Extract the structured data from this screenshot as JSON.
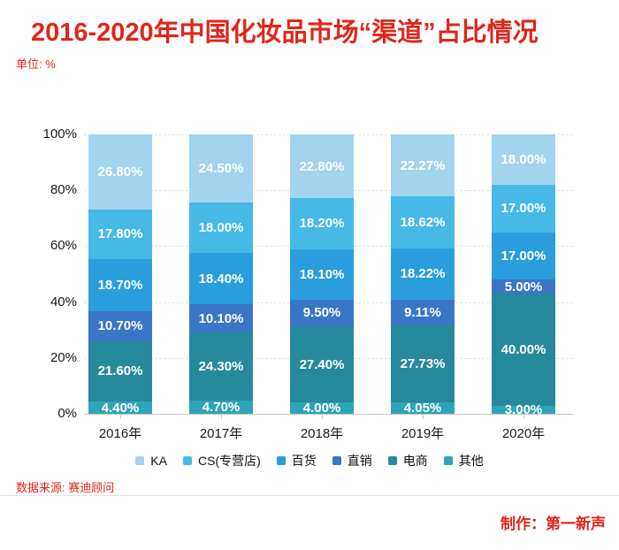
{
  "title": "2016-2020年中国化妆品市场“渠道”占比情况",
  "unit_label": "单位: %",
  "source": "数据来源: 赛迪顾问",
  "credit": "制作：第一新声",
  "accent_color": "#e1251b",
  "chart_data": {
    "type": "bar",
    "stacked": true,
    "title": "2016-2020年中国化妆品市场“渠道”占比情况",
    "unit": "%",
    "ylim": [
      0,
      100
    ],
    "y_ticks": [
      "0%",
      "20%",
      "40%",
      "60%",
      "80%",
      "100%"
    ],
    "grid": "horizontal-dashed",
    "legend_position": "bottom",
    "stack_order": "top-to-bottom",
    "categories": [
      "2016年",
      "2017年",
      "2018年",
      "2019年",
      "2020年"
    ],
    "series": [
      {
        "name": "KA",
        "color": "#a2d4ee",
        "values": [
          26.8,
          24.5,
          22.8,
          22.27,
          18.0
        ],
        "labels": [
          "26.80%",
          "24.50%",
          "22.80%",
          "22.27%",
          "18.00%"
        ]
      },
      {
        "name": "CS(专营店)",
        "color": "#47b9e6",
        "values": [
          17.8,
          18.0,
          18.2,
          18.62,
          17.0
        ],
        "labels": [
          "17.80%",
          "18.00%",
          "18.20%",
          "18.62%",
          "17.00%"
        ]
      },
      {
        "name": "百货",
        "color": "#2a9edd",
        "values": [
          18.7,
          18.4,
          18.1,
          18.22,
          17.0
        ],
        "labels": [
          "18.70%",
          "18.40%",
          "18.10%",
          "18.22%",
          "17.00%"
        ]
      },
      {
        "name": "直销",
        "color": "#3a76c6",
        "values": [
          10.7,
          10.1,
          9.5,
          9.11,
          5.0
        ],
        "labels": [
          "10.70%",
          "10.10%",
          "9.50%",
          "9.11%",
          "5.00%"
        ]
      },
      {
        "name": "电商",
        "color": "#27899c",
        "values": [
          21.6,
          24.3,
          27.4,
          27.73,
          40.0
        ],
        "labels": [
          "21.60%",
          "24.30%",
          "27.40%",
          "27.73%",
          "40.00%"
        ]
      },
      {
        "name": "其他",
        "color": "#2fa4b8",
        "values": [
          4.4,
          4.7,
          4.0,
          4.05,
          3.0
        ],
        "labels": [
          "4.40%",
          "4.70%",
          "4.00%",
          "4.05%",
          "3.00%"
        ]
      }
    ]
  }
}
